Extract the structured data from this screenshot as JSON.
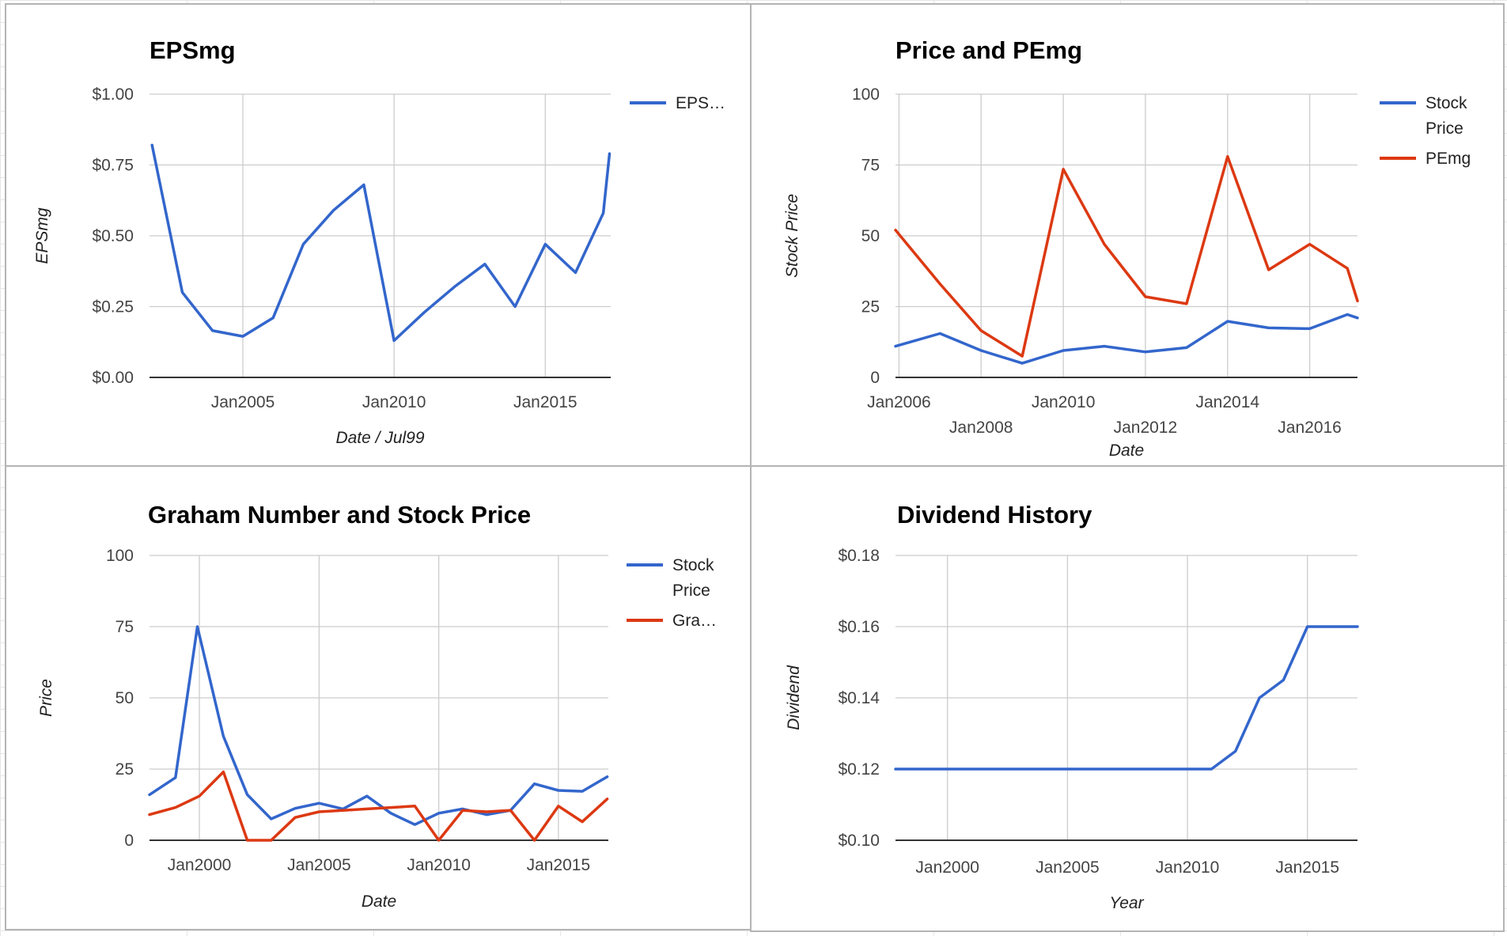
{
  "chart_data": [
    {
      "id": "epsmg",
      "type": "line",
      "title": "EPSmg",
      "xlabel": "Date / Jul99",
      "ylabel": "EPSmg",
      "x_type": "date",
      "xlim": [
        "2001-12-01",
        "2017-03-01"
      ],
      "x_ticks": [
        {
          "label": "Jan2005",
          "x": "2005-01-01"
        },
        {
          "label": "Jan2010",
          "x": "2010-01-01"
        },
        {
          "label": "Jan2015",
          "x": "2015-01-01"
        }
      ],
      "ylim": [
        0,
        1
      ],
      "y_ticks": [
        {
          "label": "$0.00",
          "y": 0
        },
        {
          "label": "$0.25",
          "y": 0.25
        },
        {
          "label": "$0.50",
          "y": 0.5
        },
        {
          "label": "$0.75",
          "y": 0.75
        },
        {
          "label": "$1.00",
          "y": 1
        }
      ],
      "grid": true,
      "legend_position": "right",
      "series": [
        {
          "name": "EPS…",
          "color": "#3366cc",
          "points": [
            [
              "2002-01-01",
              0.82
            ],
            [
              "2003-01-01",
              0.3
            ],
            [
              "2004-01-01",
              0.165
            ],
            [
              "2005-01-01",
              0.145
            ],
            [
              "2006-01-01",
              0.21
            ],
            [
              "2007-01-01",
              0.47
            ],
            [
              "2008-01-01",
              0.59
            ],
            [
              "2009-01-01",
              0.68
            ],
            [
              "2010-01-01",
              0.13
            ],
            [
              "2011-01-01",
              0.23
            ],
            [
              "2012-01-01",
              0.32
            ],
            [
              "2013-01-01",
              0.4
            ],
            [
              "2014-01-01",
              0.25
            ],
            [
              "2015-01-01",
              0.47
            ],
            [
              "2016-01-01",
              0.37
            ],
            [
              "2016-12-01",
              0.58
            ],
            [
              "2017-02-15",
              0.79
            ]
          ]
        }
      ]
    },
    {
      "id": "price-pemg",
      "type": "line",
      "title": "Price and PEmg",
      "xlabel": "Date",
      "ylabel": "Stock Price",
      "x_type": "date",
      "xlim": [
        "2005-12-01",
        "2017-03-01"
      ],
      "x_ticks": [
        {
          "label": "Jan2006",
          "x": "2006-01-01",
          "row": 0
        },
        {
          "label": "Jan2008",
          "x": "2008-01-01",
          "row": 1
        },
        {
          "label": "Jan2010",
          "x": "2010-01-01",
          "row": 0
        },
        {
          "label": "Jan2012",
          "x": "2012-01-01",
          "row": 1
        },
        {
          "label": "Jan2014",
          "x": "2014-01-01",
          "row": 0
        },
        {
          "label": "Jan2016",
          "x": "2016-01-01",
          "row": 1
        }
      ],
      "ylim": [
        0,
        100
      ],
      "y_ticks": [
        {
          "label": "0",
          "y": 0
        },
        {
          "label": "25",
          "y": 25
        },
        {
          "label": "50",
          "y": 50
        },
        {
          "label": "75",
          "y": 75
        },
        {
          "label": "100",
          "y": 100
        }
      ],
      "grid": true,
      "legend_position": "right",
      "series": [
        {
          "name": "Stock Price",
          "color": "#3366cc",
          "points": [
            [
              "2005-12-01",
              11
            ],
            [
              "2007-01-01",
              15.5
            ],
            [
              "2008-01-01",
              9.5
            ],
            [
              "2009-01-01",
              5
            ],
            [
              "2010-01-01",
              9.5
            ],
            [
              "2011-01-01",
              11
            ],
            [
              "2012-01-01",
              9
            ],
            [
              "2013-01-01",
              10.5
            ],
            [
              "2014-01-01",
              19.8
            ],
            [
              "2015-01-01",
              17.5
            ],
            [
              "2016-01-01",
              17.2
            ],
            [
              "2016-12-01",
              22.2
            ],
            [
              "2017-03-01",
              21
            ]
          ]
        },
        {
          "name": "PEmg",
          "color": "#dc3912",
          "points": [
            [
              "2005-12-01",
              52
            ],
            [
              "2007-01-01",
              33
            ],
            [
              "2008-01-01",
              16.5
            ],
            [
              "2009-01-01",
              7.5
            ],
            [
              "2010-01-01",
              73.5
            ],
            [
              "2011-01-01",
              47
            ],
            [
              "2012-01-01",
              28.5
            ],
            [
              "2013-01-01",
              26
            ],
            [
              "2014-01-01",
              78
            ],
            [
              "2015-01-01",
              38
            ],
            [
              "2016-01-01",
              47
            ],
            [
              "2016-12-01",
              38.5
            ],
            [
              "2017-03-01",
              27
            ]
          ]
        }
      ]
    },
    {
      "id": "graham",
      "type": "line",
      "title": "Graham Number and Stock Price",
      "xlabel": "Date",
      "ylabel": "Price",
      "x_type": "date",
      "xlim": [
        "1997-12-01",
        "2017-02-01"
      ],
      "x_ticks": [
        {
          "label": "Jan2000",
          "x": "2000-01-01"
        },
        {
          "label": "Jan2005",
          "x": "2005-01-01"
        },
        {
          "label": "Jan2010",
          "x": "2010-01-01"
        },
        {
          "label": "Jan2015",
          "x": "2015-01-01"
        }
      ],
      "ylim": [
        0,
        100
      ],
      "y_ticks": [
        {
          "label": "0",
          "y": 0
        },
        {
          "label": "25",
          "y": 25
        },
        {
          "label": "50",
          "y": 50
        },
        {
          "label": "75",
          "y": 75
        },
        {
          "label": "100",
          "y": 100
        }
      ],
      "grid": true,
      "legend_position": "right",
      "series": [
        {
          "name": "Stock Price",
          "color": "#3366cc",
          "points": [
            [
              "1997-12-01",
              16
            ],
            [
              "1999-01-01",
              22
            ],
            [
              "1999-12-01",
              75
            ],
            [
              "2001-01-01",
              36.5
            ],
            [
              "2002-01-01",
              16
            ],
            [
              "2003-01-01",
              7.5
            ],
            [
              "2004-01-01",
              11.2
            ],
            [
              "2005-01-01",
              13
            ],
            [
              "2006-01-01",
              11
            ],
            [
              "2007-01-01",
              15.5
            ],
            [
              "2008-01-01",
              9.5
            ],
            [
              "2009-01-01",
              5.5
            ],
            [
              "2010-01-01",
              9.5
            ],
            [
              "2011-01-01",
              11
            ],
            [
              "2012-01-01",
              9
            ],
            [
              "2013-01-01",
              10.5
            ],
            [
              "2014-01-01",
              19.8
            ],
            [
              "2015-01-01",
              17.5
            ],
            [
              "2016-01-01",
              17.2
            ],
            [
              "2017-01-15",
              22.3
            ]
          ]
        },
        {
          "name": "Gra…",
          "color": "#dc3912",
          "points": [
            [
              "1997-12-01",
              9
            ],
            [
              "1999-01-01",
              11.5
            ],
            [
              "2000-01-01",
              15.5
            ],
            [
              "2001-01-01",
              24
            ],
            [
              "2002-01-01",
              0
            ],
            [
              "2003-01-01",
              0
            ],
            [
              "2004-01-01",
              8
            ],
            [
              "2005-01-01",
              10
            ],
            [
              "2006-01-01",
              10.5
            ],
            [
              "2007-01-01",
              11
            ],
            [
              "2008-01-01",
              11.5
            ],
            [
              "2009-01-01",
              12
            ],
            [
              "2010-01-01",
              0
            ],
            [
              "2011-01-01",
              10.5
            ],
            [
              "2012-01-01",
              10
            ],
            [
              "2013-01-01",
              10.5
            ],
            [
              "2014-01-01",
              0
            ],
            [
              "2015-01-01",
              12
            ],
            [
              "2016-01-01",
              6.5
            ],
            [
              "2017-01-15",
              14.5
            ]
          ]
        }
      ]
    },
    {
      "id": "dividend",
      "type": "line",
      "title": "Dividend History",
      "xlabel": "Year",
      "ylabel": "Dividend",
      "x_type": "date",
      "xlim": [
        "1997-11-01",
        "2017-02-01"
      ],
      "x_ticks": [
        {
          "label": "Jan2000",
          "x": "2000-01-01"
        },
        {
          "label": "Jan2005",
          "x": "2005-01-01"
        },
        {
          "label": "Jan2010",
          "x": "2010-01-01"
        },
        {
          "label": "Jan2015",
          "x": "2015-01-01"
        }
      ],
      "ylim": [
        0.1,
        0.18
      ],
      "y_ticks": [
        {
          "label": "$0.10",
          "y": 0.1
        },
        {
          "label": "$0.12",
          "y": 0.12
        },
        {
          "label": "$0.14",
          "y": 0.14
        },
        {
          "label": "$0.16",
          "y": 0.16
        },
        {
          "label": "$0.18",
          "y": 0.18
        }
      ],
      "grid": true,
      "legend_position": "none",
      "series": [
        {
          "color": "#3366cc",
          "points": [
            [
              "1997-11-01",
              0.12
            ],
            [
              "2011-01-01",
              0.12
            ],
            [
              "2012-01-01",
              0.125
            ],
            [
              "2013-01-01",
              0.14
            ],
            [
              "2014-01-01",
              0.145
            ],
            [
              "2015-01-01",
              0.16
            ],
            [
              "2017-02-01",
              0.16
            ]
          ]
        }
      ]
    }
  ]
}
